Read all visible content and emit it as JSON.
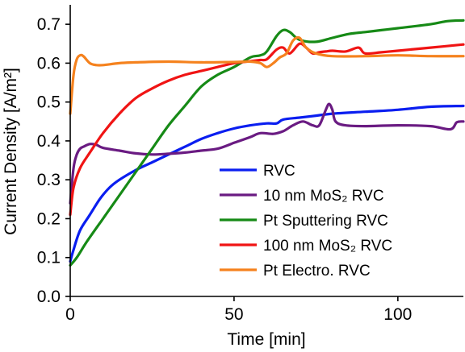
{
  "chart_data": {
    "type": "line",
    "title": "",
    "xlabel": "Time [min]",
    "ylabel": "Current Density [A/m²]",
    "xlim": [
      0,
      120
    ],
    "ylim": [
      0,
      0.75
    ],
    "xticks": [
      "0",
      "50",
      "100"
    ],
    "yticks": [
      "0.0",
      "0.1",
      "0.2",
      "0.3",
      "0.4",
      "0.5",
      "0.6",
      "0.7"
    ],
    "grid": false,
    "legend_position": "center-right",
    "series": [
      {
        "name": "RVC",
        "color": "#0a1ef0",
        "points": [
          [
            0,
            0.09
          ],
          [
            1,
            0.12
          ],
          [
            3,
            0.17
          ],
          [
            6,
            0.21
          ],
          [
            9,
            0.25
          ],
          [
            12,
            0.28
          ],
          [
            15,
            0.3
          ],
          [
            20,
            0.325
          ],
          [
            25,
            0.345
          ],
          [
            30,
            0.365
          ],
          [
            35,
            0.385
          ],
          [
            40,
            0.405
          ],
          [
            45,
            0.42
          ],
          [
            50,
            0.432
          ],
          [
            55,
            0.44
          ],
          [
            60,
            0.445
          ],
          [
            63,
            0.445
          ],
          [
            65,
            0.455
          ],
          [
            70,
            0.46
          ],
          [
            75,
            0.465
          ],
          [
            80,
            0.47
          ],
          [
            90,
            0.475
          ],
          [
            100,
            0.48
          ],
          [
            110,
            0.488
          ],
          [
            120,
            0.49
          ]
        ]
      },
      {
        "name": "10 nm MoS₂ RVC",
        "color": "#6a1b82",
        "points": [
          [
            0,
            0.24
          ],
          [
            1,
            0.33
          ],
          [
            2,
            0.365
          ],
          [
            3,
            0.38
          ],
          [
            4,
            0.385
          ],
          [
            6,
            0.392
          ],
          [
            8,
            0.39
          ],
          [
            10,
            0.382
          ],
          [
            15,
            0.375
          ],
          [
            20,
            0.368
          ],
          [
            25,
            0.365
          ],
          [
            30,
            0.367
          ],
          [
            35,
            0.37
          ],
          [
            40,
            0.375
          ],
          [
            45,
            0.38
          ],
          [
            50,
            0.395
          ],
          [
            55,
            0.41
          ],
          [
            58,
            0.42
          ],
          [
            62,
            0.418
          ],
          [
            65,
            0.425
          ],
          [
            68,
            0.44
          ],
          [
            71,
            0.45
          ],
          [
            74,
            0.44
          ],
          [
            76,
            0.44
          ],
          [
            78,
            0.48
          ],
          [
            79,
            0.495
          ],
          [
            80,
            0.48
          ],
          [
            81,
            0.45
          ],
          [
            84,
            0.44
          ],
          [
            90,
            0.438
          ],
          [
            100,
            0.44
          ],
          [
            110,
            0.438
          ],
          [
            116,
            0.43
          ],
          [
            118,
            0.448
          ],
          [
            120,
            0.45
          ]
        ]
      },
      {
        "name": "Pt Sputtering RVC",
        "color": "#168a16",
        "points": [
          [
            0,
            0.08
          ],
          [
            2,
            0.1
          ],
          [
            5,
            0.14
          ],
          [
            10,
            0.2
          ],
          [
            15,
            0.26
          ],
          [
            20,
            0.32
          ],
          [
            25,
            0.38
          ],
          [
            30,
            0.44
          ],
          [
            35,
            0.49
          ],
          [
            40,
            0.54
          ],
          [
            45,
            0.57
          ],
          [
            50,
            0.59
          ],
          [
            55,
            0.615
          ],
          [
            58,
            0.62
          ],
          [
            60,
            0.63
          ],
          [
            63,
            0.67
          ],
          [
            65,
            0.685
          ],
          [
            67,
            0.68
          ],
          [
            70,
            0.66
          ],
          [
            75,
            0.655
          ],
          [
            80,
            0.665
          ],
          [
            85,
            0.675
          ],
          [
            90,
            0.68
          ],
          [
            95,
            0.685
          ],
          [
            100,
            0.69
          ],
          [
            110,
            0.7
          ],
          [
            115,
            0.708
          ],
          [
            120,
            0.71
          ]
        ]
      },
      {
        "name": "100 nm MoS₂ RVC",
        "color": "#f01414",
        "points": [
          [
            0,
            0.21
          ],
          [
            1,
            0.28
          ],
          [
            3,
            0.33
          ],
          [
            6,
            0.37
          ],
          [
            10,
            0.42
          ],
          [
            15,
            0.47
          ],
          [
            20,
            0.51
          ],
          [
            25,
            0.535
          ],
          [
            30,
            0.555
          ],
          [
            35,
            0.57
          ],
          [
            40,
            0.58
          ],
          [
            45,
            0.59
          ],
          [
            50,
            0.6
          ],
          [
            55,
            0.605
          ],
          [
            58,
            0.608
          ],
          [
            60,
            0.61
          ],
          [
            63,
            0.635
          ],
          [
            65,
            0.64
          ],
          [
            67,
            0.625
          ],
          [
            70,
            0.65
          ],
          [
            72,
            0.64
          ],
          [
            74,
            0.625
          ],
          [
            76,
            0.628
          ],
          [
            78,
            0.63
          ],
          [
            80,
            0.632
          ],
          [
            84,
            0.63
          ],
          [
            88,
            0.64
          ],
          [
            90,
            0.625
          ],
          [
            95,
            0.628
          ],
          [
            100,
            0.632
          ],
          [
            110,
            0.64
          ],
          [
            120,
            0.648
          ]
        ]
      },
      {
        "name": "Pt Electro. RVC",
        "color": "#f5821e",
        "points": [
          [
            0,
            0.47
          ],
          [
            1,
            0.57
          ],
          [
            2,
            0.61
          ],
          [
            3,
            0.62
          ],
          [
            4,
            0.618
          ],
          [
            6,
            0.6
          ],
          [
            8,
            0.595
          ],
          [
            10,
            0.595
          ],
          [
            15,
            0.6
          ],
          [
            20,
            0.602
          ],
          [
            30,
            0.604
          ],
          [
            40,
            0.602
          ],
          [
            50,
            0.603
          ],
          [
            55,
            0.604
          ],
          [
            58,
            0.6
          ],
          [
            60,
            0.59
          ],
          [
            62,
            0.6
          ],
          [
            64,
            0.615
          ],
          [
            66,
            0.625
          ],
          [
            68,
            0.658
          ],
          [
            70,
            0.665
          ],
          [
            72,
            0.64
          ],
          [
            75,
            0.625
          ],
          [
            80,
            0.618
          ],
          [
            90,
            0.618
          ],
          [
            100,
            0.62
          ],
          [
            110,
            0.618
          ],
          [
            120,
            0.618
          ]
        ]
      }
    ]
  }
}
